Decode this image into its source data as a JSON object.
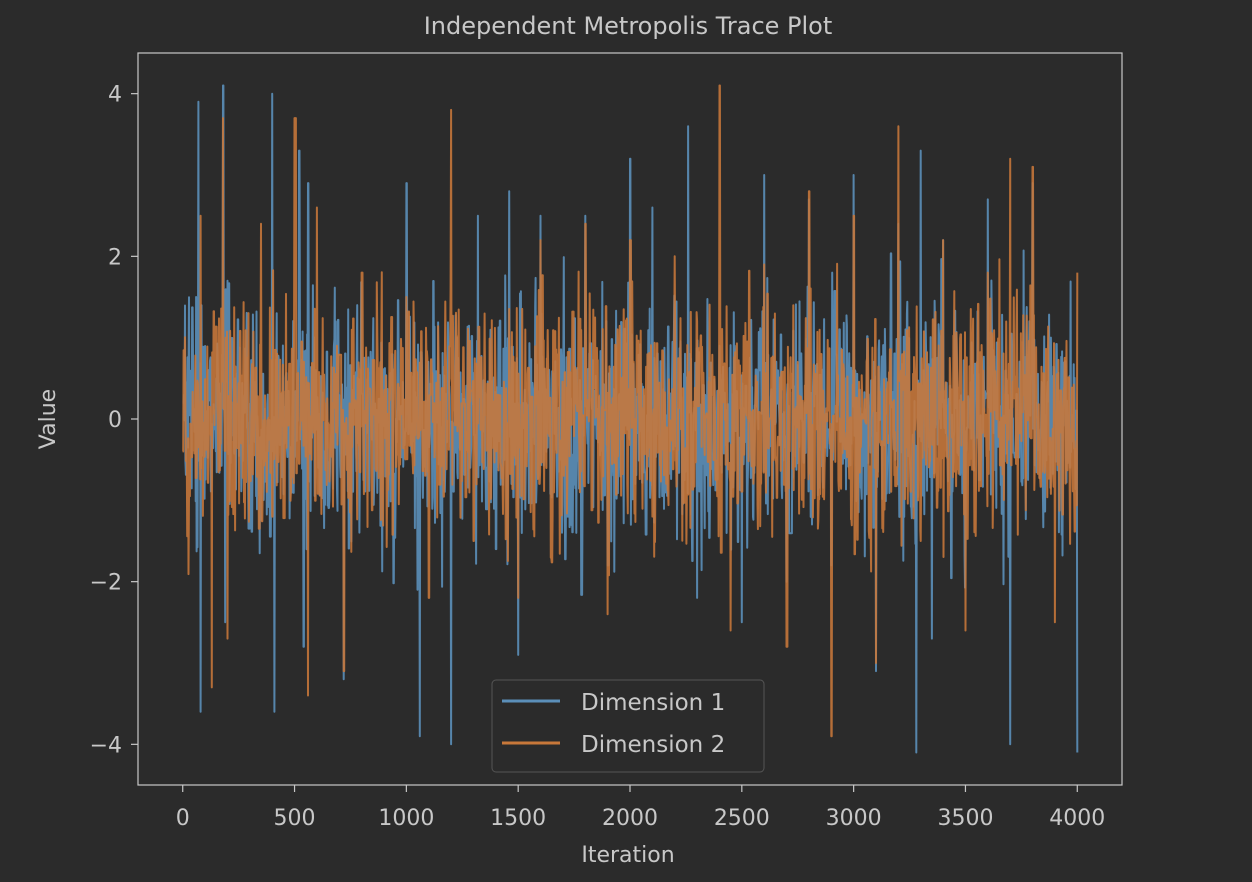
{
  "chart_data": {
    "type": "line",
    "title": "Independent Metropolis Trace Plot",
    "xlabel": "Iteration",
    "ylabel": "Value",
    "xlim": [
      -200,
      4200
    ],
    "ylim": [
      -4.5,
      4.5
    ],
    "xticks": [
      0,
      500,
      1000,
      1500,
      2000,
      2500,
      3000,
      3500,
      4000
    ],
    "yticks": [
      -4,
      -2,
      0,
      2,
      4
    ],
    "ytick_labels": [
      "−4",
      "−2",
      "0",
      "2",
      "4"
    ],
    "grid": false,
    "legend_position": "lower center",
    "n_iterations": 4000,
    "series": [
      {
        "name": "Dimension 1",
        "color": "#5b8fb9",
        "x": [
          0,
          60,
          70,
          80,
          180,
          190,
          200,
          400,
          410,
          420,
          520,
          540,
          560,
          720,
          780,
          1000,
          1050,
          1060,
          1200,
          1320,
          1340,
          1400,
          1460,
          1500,
          1600,
          1700,
          1720,
          1760,
          1800,
          1900,
          2000,
          2100,
          2260,
          2300,
          2400,
          2500,
          2600,
          2700,
          2800,
          2900,
          3000,
          3100,
          3200,
          3280,
          3300,
          3350,
          3400,
          3500,
          3600,
          3700,
          3800,
          3900,
          4000
        ],
        "y": [
          0.2,
          1.5,
          3.9,
          -3.6,
          4.1,
          -2.5,
          1.7,
          4.0,
          -3.6,
          1.3,
          3.3,
          -2.8,
          2.9,
          -3.2,
          1.4,
          2.9,
          -2.1,
          -3.9,
          -4.0,
          2.5,
          0.3,
          -1.6,
          2.8,
          -2.9,
          2.5,
          0.7,
          -1.2,
          -1.4,
          2.5,
          -1.8,
          3.2,
          2.6,
          3.6,
          -2.2,
          0.9,
          -2.5,
          3.0,
          -2.0,
          2.7,
          -1.8,
          3.0,
          -3.1,
          2.4,
          -4.1,
          3.3,
          -2.7,
          2.2,
          -1.5,
          2.7,
          -4.0,
          2.9,
          0.2,
          -4.1
        ]
      },
      {
        "name": "Dimension 2",
        "color": "#c8783a",
        "x": [
          0,
          80,
          130,
          180,
          200,
          350,
          400,
          500,
          560,
          600,
          720,
          800,
          1000,
          1100,
          1200,
          1300,
          1400,
          1500,
          1600,
          1700,
          1800,
          1900,
          2000,
          2100,
          2200,
          2300,
          2400,
          2450,
          2600,
          2700,
          2800,
          2900,
          3000,
          3100,
          3200,
          3300,
          3400,
          3500,
          3600,
          3700,
          3800,
          3900,
          4000
        ],
        "y": [
          -0.4,
          2.5,
          -3.3,
          3.7,
          -2.7,
          2.4,
          -1.2,
          3.7,
          -3.4,
          2.6,
          -3.1,
          1.8,
          1.5,
          -2.2,
          3.8,
          -1.5,
          0.3,
          -2.2,
          2.2,
          -0.3,
          2.4,
          -2.4,
          2.2,
          -1.2,
          2.0,
          1.2,
          4.1,
          -2.6,
          1.9,
          -2.8,
          2.8,
          -3.9,
          2.5,
          -3.0,
          3.6,
          -1.5,
          2.2,
          -2.6,
          1.8,
          3.2,
          3.1,
          -2.5,
          1.8
        ]
      }
    ]
  }
}
